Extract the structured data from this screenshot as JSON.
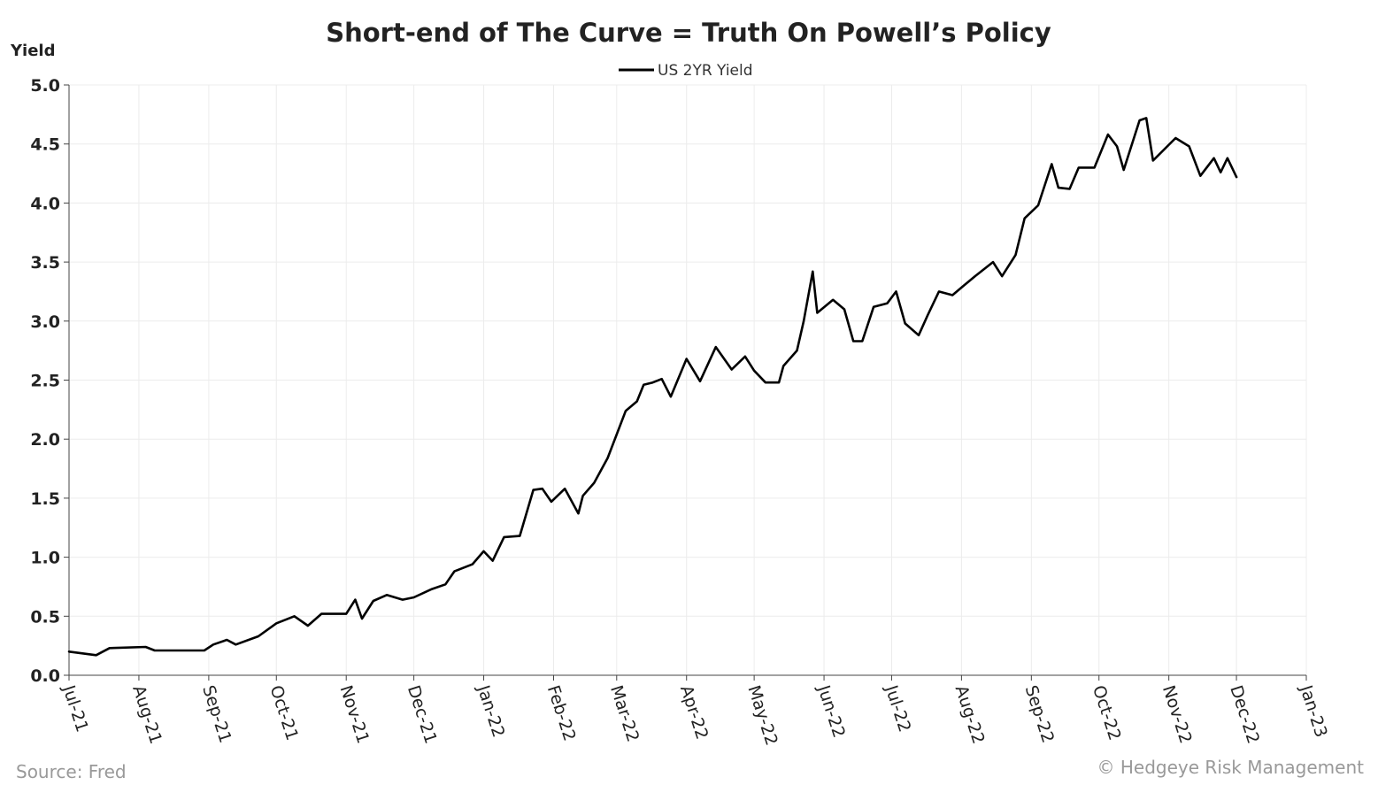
{
  "chart_data": {
    "type": "line",
    "title": "Short-end of The Curve = Truth On Powell’s Policy",
    "ylabel": "Yield",
    "xlabel": "",
    "ylim": [
      0,
      5.0
    ],
    "xlim": [
      "2021-07-01",
      "2023-01-01"
    ],
    "yticks": [
      "0.0",
      "0.5",
      "1.0",
      "1.5",
      "2.0",
      "2.5",
      "3.0",
      "3.5",
      "4.0",
      "4.5",
      "5.0"
    ],
    "xticks": [
      "Jul-21",
      "Aug-21",
      "Sep-21",
      "Oct-21",
      "Nov-21",
      "Dec-21",
      "Jan-22",
      "Feb-22",
      "Mar-22",
      "Apr-22",
      "May-22",
      "Jun-22",
      "Jul-22",
      "Aug-22",
      "Sep-22",
      "Oct-22",
      "Nov-22",
      "Dec-22",
      "Jan-23"
    ],
    "grid": true,
    "legend_position": "top-center",
    "series": [
      {
        "name": "US 2YR Yield",
        "color": "#000000",
        "x": [
          "2021-07-01",
          "2021-07-13",
          "2021-07-19",
          "2021-08-04",
          "2021-08-08",
          "2021-08-30",
          "2021-09-03",
          "2021-09-09",
          "2021-09-13",
          "2021-09-23",
          "2021-10-01",
          "2021-10-09",
          "2021-10-15",
          "2021-10-21",
          "2021-11-01",
          "2021-11-05",
          "2021-11-08",
          "2021-11-13",
          "2021-11-19",
          "2021-11-26",
          "2021-12-01",
          "2021-12-09",
          "2021-12-15",
          "2021-12-19",
          "2021-12-27",
          "2022-01-01",
          "2022-01-05",
          "2022-01-10",
          "2022-01-17",
          "2022-01-23",
          "2022-01-27",
          "2022-01-31",
          "2022-02-06",
          "2022-02-12",
          "2022-02-14",
          "2022-02-19",
          "2022-02-25",
          "2022-03-01",
          "2022-03-05",
          "2022-03-10",
          "2022-03-13",
          "2022-03-17",
          "2022-03-21",
          "2022-03-25",
          "2022-04-01",
          "2022-04-07",
          "2022-04-14",
          "2022-04-21",
          "2022-04-27",
          "2022-05-01",
          "2022-05-06",
          "2022-05-12",
          "2022-05-14",
          "2022-05-20",
          "2022-05-23",
          "2022-05-27",
          "2022-05-29",
          "2022-06-05",
          "2022-06-10",
          "2022-06-14",
          "2022-06-18",
          "2022-06-23",
          "2022-06-29",
          "2022-07-03",
          "2022-07-07",
          "2022-07-13",
          "2022-07-17",
          "2022-07-22",
          "2022-07-28",
          "2022-08-02",
          "2022-08-07",
          "2022-08-15",
          "2022-08-19",
          "2022-08-25",
          "2022-08-29",
          "2022-09-04",
          "2022-09-10",
          "2022-09-13",
          "2022-09-18",
          "2022-09-22",
          "2022-09-29",
          "2022-10-05",
          "2022-10-09",
          "2022-10-12",
          "2022-10-19",
          "2022-10-22",
          "2022-10-25",
          "2022-11-04",
          "2022-11-10",
          "2022-11-15",
          "2022-11-21",
          "2022-11-24",
          "2022-11-27",
          "2022-12-01"
        ],
        "values": [
          0.2,
          0.17,
          0.23,
          0.24,
          0.21,
          0.21,
          0.26,
          0.3,
          0.26,
          0.33,
          0.44,
          0.5,
          0.42,
          0.52,
          0.52,
          0.64,
          0.48,
          0.63,
          0.68,
          0.64,
          0.66,
          0.73,
          0.77,
          0.88,
          0.94,
          1.05,
          0.97,
          1.17,
          1.18,
          1.57,
          1.58,
          1.47,
          1.58,
          1.37,
          1.52,
          1.63,
          1.84,
          2.04,
          2.24,
          2.32,
          2.46,
          2.48,
          2.51,
          2.36,
          2.68,
          2.49,
          2.78,
          2.59,
          2.7,
          2.58,
          2.48,
          2.48,
          2.62,
          2.75,
          3.0,
          3.42,
          3.07,
          3.18,
          3.1,
          2.83,
          2.83,
          3.12,
          3.15,
          3.25,
          2.98,
          2.88,
          3.05,
          3.25,
          3.22,
          3.3,
          3.38,
          3.5,
          3.38,
          3.56,
          3.87,
          3.98,
          4.33,
          4.13,
          4.12,
          4.3,
          4.3,
          4.58,
          4.48,
          4.28,
          4.7,
          4.72,
          4.36,
          4.55,
          4.48,
          4.23,
          4.38,
          4.26,
          4.38,
          4.22
        ]
      }
    ]
  },
  "footer": {
    "source": "Source: Fred",
    "credit": "© Hedgeye Risk Management"
  }
}
